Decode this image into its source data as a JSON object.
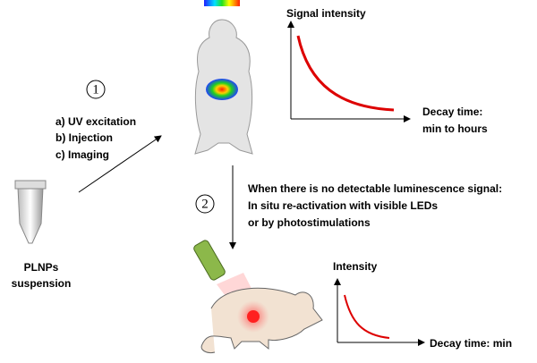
{
  "steps": [
    {
      "number": "1",
      "lines": [
        "a) UV excitation",
        "b) Injection",
        "c) Imaging"
      ]
    },
    {
      "number": "2",
      "lines": [
        "When there is no detectable luminescence signal:",
        "In situ re-activation with visible LEDs",
        "or by photostimulations"
      ]
    }
  ],
  "sample": {
    "lines": [
      "PLNPs",
      "suspension"
    ]
  },
  "plots": [
    {
      "y_label": "Signal intensity",
      "x_label_lines": [
        "Decay time:",
        "min to hours"
      ]
    },
    {
      "y_label": "Intensity",
      "x_label_lines": [
        "Decay time: min"
      ]
    }
  ]
}
